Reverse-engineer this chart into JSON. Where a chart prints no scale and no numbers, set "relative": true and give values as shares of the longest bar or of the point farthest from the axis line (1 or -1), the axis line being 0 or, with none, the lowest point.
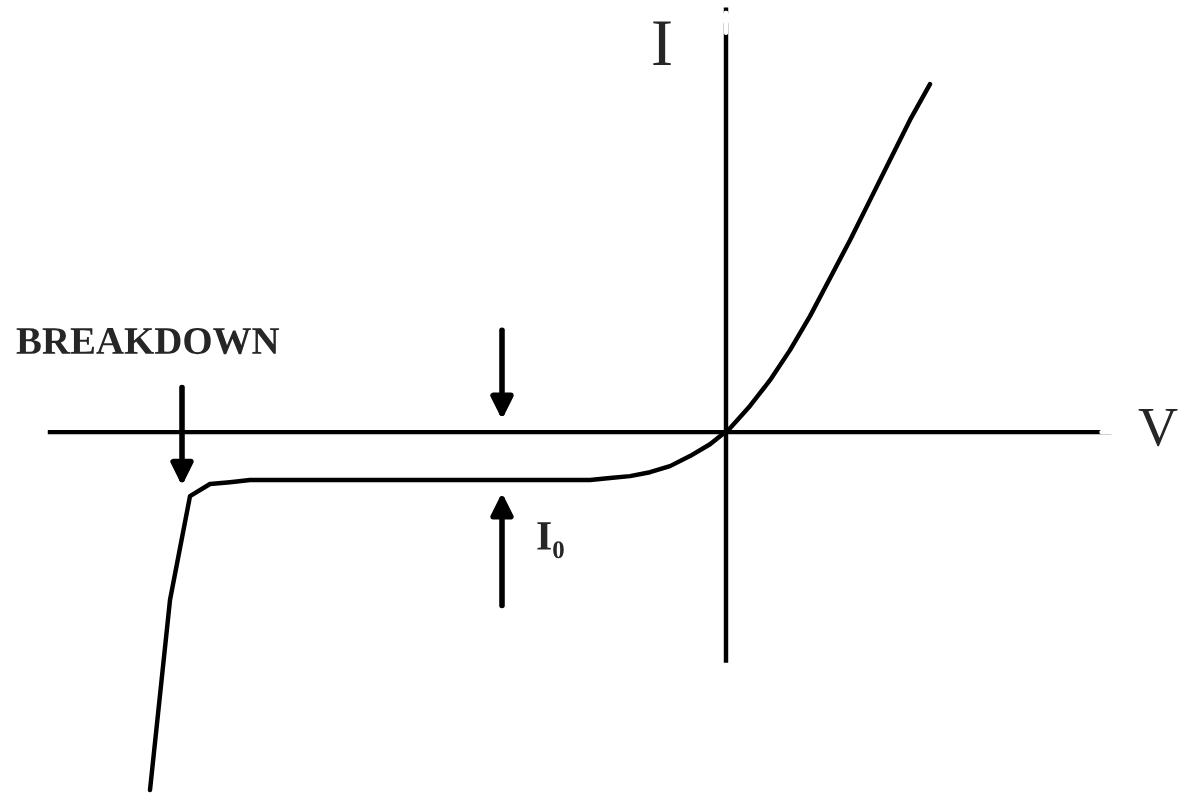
{
  "chart_data": {
    "type": "line",
    "relative": true,
    "xlabel": "V",
    "ylabel": "I",
    "color": "#000000",
    "marker": "none",
    "line_style": "solid",
    "categories": [
      null,
      null,
      null,
      null,
      null,
      null,
      null,
      null,
      null,
      null,
      null,
      null,
      null,
      null,
      null,
      null,
      null,
      null,
      null,
      null,
      null,
      null,
      null,
      null,
      null,
      null,
      null,
      null,
      null,
      null,
      null,
      null,
      null,
      null,
      null,
      null,
      null,
      null,
      null,
      null
    ],
    "values": [
      -1.0,
      -0.469,
      -0.179,
      -0.145,
      -0.14,
      -0.134,
      -0.134,
      -0.134,
      -0.134,
      -0.134,
      -0.134,
      -0.134,
      -0.134,
      -0.134,
      -0.134,
      -0.134,
      -0.134,
      -0.134,
      -0.134,
      -0.134,
      -0.134,
      -0.134,
      -0.134,
      -0.128,
      -0.123,
      -0.112,
      -0.095,
      -0.067,
      -0.034,
      0.011,
      0.073,
      0.145,
      0.229,
      0.324,
      0.43,
      0.536,
      0.648,
      0.76,
      0.872,
      0.972
    ],
    "annotations": [
      "BREAKDOWN",
      "I₀"
    ]
  }
}
